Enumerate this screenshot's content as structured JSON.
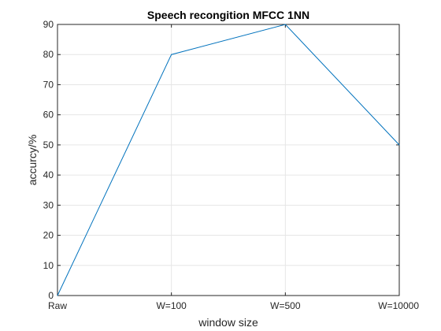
{
  "chart_data": {
    "type": "line",
    "title": "Speech recongition MFCC 1NN",
    "xlabel": "window size",
    "ylabel": "accurcy/%",
    "categories": [
      "Raw",
      "W=100",
      "W=500",
      "W=10000"
    ],
    "series": [
      {
        "values": [
          0,
          80,
          90,
          50
        ],
        "color": "#0072BD"
      }
    ],
    "ylim": [
      0,
      90
    ],
    "yticks": [
      0,
      10,
      20,
      30,
      40,
      50,
      60,
      70,
      80,
      90
    ],
    "grid": true,
    "legend": "none",
    "colors": {
      "axis": "#262626",
      "grid": "#e6e6e6",
      "line": "#0072BD"
    }
  }
}
